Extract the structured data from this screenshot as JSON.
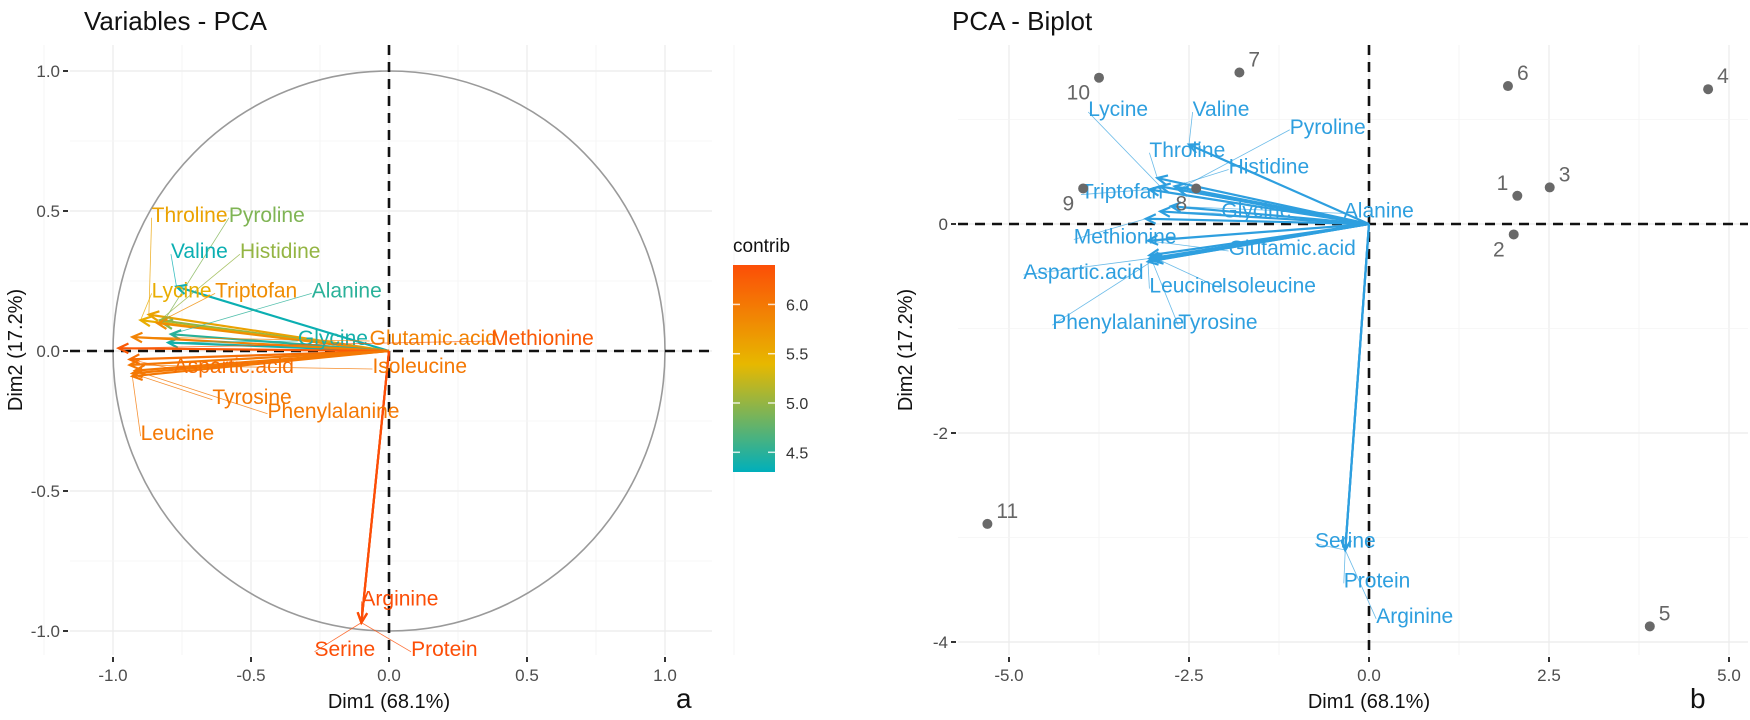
{
  "chart_data": [
    {
      "type": "scatter",
      "subtype": "pca-variable-correlation-circle",
      "title": "Variables - PCA",
      "panel_letter": "a",
      "xlabel": "Dim1 (68.1%)",
      "ylabel": "Dim2 (17.2%)",
      "xlim": [
        -1.1,
        1.1
      ],
      "ylim": [
        -1.1,
        1.05
      ],
      "xticks": [
        "-1.0",
        "-0.5",
        "0.0",
        "0.5",
        "1.0"
      ],
      "xtick_values": [
        -1.0,
        -0.5,
        0.0,
        0.5,
        1.0
      ],
      "yticks": [
        "1.0",
        "0.5",
        "0.0",
        "-0.5",
        "-1.0"
      ],
      "ytick_values": [
        1.0,
        0.5,
        0.0,
        -0.5,
        -1.0
      ],
      "grid": true,
      "color_legend": {
        "title": "contrib",
        "position": "right",
        "ticks": [
          "6.0",
          "5.5",
          "5.0",
          "4.5"
        ],
        "tick_values": [
          6.0,
          5.5,
          5.0,
          4.5
        ],
        "range": [
          4.3,
          6.4
        ],
        "colors": [
          "#00AFBB",
          "#E7B800",
          "#FC4E07"
        ]
      },
      "variables": [
        {
          "name": "Throline",
          "x": -0.87,
          "y": 0.13,
          "contrib": 5.6,
          "label_x": -0.86,
          "label_y": 0.49
        },
        {
          "name": "Pyroline",
          "x": -0.82,
          "y": 0.1,
          "contrib": 4.9,
          "label_x": -0.58,
          "label_y": 0.49
        },
        {
          "name": "Valine",
          "x": -0.77,
          "y": 0.23,
          "contrib": 4.35,
          "label_x": -0.79,
          "label_y": 0.36
        },
        {
          "name": "Histidine",
          "x": -0.83,
          "y": 0.11,
          "contrib": 5.0,
          "label_x": -0.54,
          "label_y": 0.36
        },
        {
          "name": "Lycine",
          "x": -0.9,
          "y": 0.11,
          "contrib": 5.5,
          "label_x": -0.86,
          "label_y": 0.22
        },
        {
          "name": "Triptofan",
          "x": -0.84,
          "y": 0.1,
          "contrib": 5.8,
          "label_x": -0.63,
          "label_y": 0.22
        },
        {
          "name": "Alanine",
          "x": -0.79,
          "y": 0.06,
          "contrib": 4.5,
          "label_x": -0.28,
          "label_y": 0.22
        },
        {
          "name": "Glycine",
          "x": -0.8,
          "y": 0.03,
          "contrib": 4.4,
          "label_x": -0.33,
          "label_y": 0.05
        },
        {
          "name": "Glutamic.acid",
          "x": -0.93,
          "y": 0.05,
          "contrib": 5.9,
          "label_x": -0.07,
          "label_y": 0.05
        },
        {
          "name": "Methionine",
          "x": -0.98,
          "y": 0.01,
          "contrib": 6.3,
          "label_x": 0.37,
          "label_y": 0.05
        },
        {
          "name": "Aspartic.acid",
          "x": -0.94,
          "y": -0.03,
          "contrib": 6.1,
          "label_x": -0.78,
          "label_y": -0.05
        },
        {
          "name": "Isoleucine",
          "x": -0.94,
          "y": -0.05,
          "contrib": 6.0,
          "label_x": -0.06,
          "label_y": -0.05
        },
        {
          "name": "Tyrosine",
          "x": -0.93,
          "y": -0.08,
          "contrib": 6.0,
          "label_x": -0.64,
          "label_y": -0.16
        },
        {
          "name": "Phenylalanine",
          "x": -0.92,
          "y": -0.07,
          "contrib": 6.0,
          "label_x": -0.44,
          "label_y": -0.21
        },
        {
          "name": "Leucine",
          "x": -0.93,
          "y": -0.09,
          "contrib": 6.0,
          "label_x": -0.9,
          "label_y": -0.29
        },
        {
          "name": "Arginine",
          "x": -0.1,
          "y": -0.97,
          "contrib": 6.4,
          "label_x": -0.1,
          "label_y": -0.88
        },
        {
          "name": "Serine",
          "x": -0.1,
          "y": -0.97,
          "contrib": 6.4,
          "label_x": -0.27,
          "label_y": -1.06
        },
        {
          "name": "Protein",
          "x": -0.1,
          "y": -0.97,
          "contrib": 6.4,
          "label_x": 0.08,
          "label_y": -1.06
        }
      ]
    },
    {
      "type": "scatter",
      "subtype": "pca-biplot",
      "title": "PCA - Biplot",
      "panel_letter": "b",
      "xlabel": "Dim1 (68.1%)",
      "ylabel": "Dim2 (17.2%)",
      "xlim": [
        -5.9,
        5.3
      ],
      "ylim": [
        -4.2,
        2.0
      ],
      "xticks": [
        "-5.0",
        "-2.5",
        "0.0",
        "2.5",
        "5.0"
      ],
      "xtick_values": [
        -5.0,
        -2.5,
        0.0,
        2.5,
        5.0
      ],
      "yticks": [
        "0",
        "-2",
        "-4"
      ],
      "ytick_values": [
        0,
        -2,
        -4
      ],
      "grid": true,
      "arrow_color": "#2E9FDF",
      "point_color": "#696969",
      "individuals": [
        {
          "label": "1",
          "x": 2.06,
          "y": 0.27,
          "label_dx": -1,
          "label_dy": -1
        },
        {
          "label": "2",
          "x": 2.01,
          "y": -0.1,
          "label_dx": -1,
          "label_dy": 1
        },
        {
          "label": "3",
          "x": 2.51,
          "y": 0.35,
          "label_dx": 1,
          "label_dy": -1
        },
        {
          "label": "4",
          "x": 4.71,
          "y": 1.29,
          "label_dx": 1,
          "label_dy": -1
        },
        {
          "label": "5",
          "x": 3.9,
          "y": -3.85,
          "label_dx": 1,
          "label_dy": -1
        },
        {
          "label": "6",
          "x": 1.93,
          "y": 1.32,
          "label_dx": 1,
          "label_dy": -1
        },
        {
          "label": "7",
          "x": -1.8,
          "y": 1.45,
          "label_dx": 1,
          "label_dy": -1
        },
        {
          "label": "8",
          "x": -2.4,
          "y": 0.34,
          "label_dx": -1,
          "label_dy": 1
        },
        {
          "label": "9",
          "x": -3.97,
          "y": 0.34,
          "label_dx": -1,
          "label_dy": 1
        },
        {
          "label": "10",
          "x": -3.75,
          "y": 1.4,
          "label_dx": -1,
          "label_dy": 1
        },
        {
          "label": "11",
          "x": -5.3,
          "y": -2.87,
          "label_dx": 1,
          "label_dy": -1
        }
      ],
      "variables": [
        {
          "name": "Lycine",
          "x": -2.9,
          "y": 0.36,
          "label_x": -3.9,
          "label_y": 1.11
        },
        {
          "name": "Valine",
          "x": -2.5,
          "y": 0.76,
          "label_x": -2.45,
          "label_y": 1.11
        },
        {
          "name": "Pyroline",
          "x": -2.65,
          "y": 0.33,
          "label_x": -1.1,
          "label_y": 0.94
        },
        {
          "name": "Throline",
          "x": -2.94,
          "y": 0.44,
          "label_x": -3.05,
          "label_y": 0.72
        },
        {
          "name": "Histidine",
          "x": -2.7,
          "y": 0.36,
          "label_x": -1.95,
          "label_y": 0.56
        },
        {
          "name": "Triptofan",
          "x": -3.05,
          "y": 0.33,
          "label_x": -4.0,
          "label_y": 0.32
        },
        {
          "name": "Glycine",
          "x": -2.9,
          "y": 0.12,
          "label_x": -2.05,
          "label_y": 0.14
        },
        {
          "name": "Alanine",
          "x": -2.75,
          "y": 0.17,
          "label_x": -0.35,
          "label_y": 0.14
        },
        {
          "name": "Methionine",
          "x": -3.1,
          "y": 0.05,
          "label_x": -4.1,
          "label_y": -0.11
        },
        {
          "name": "Glutamic.acid",
          "x": -3.07,
          "y": -0.16,
          "label_x": -1.95,
          "label_y": -0.22
        },
        {
          "name": "Aspartic.acid",
          "x": -3.05,
          "y": -0.33,
          "label_x": -4.8,
          "label_y": -0.45
        },
        {
          "name": "Leucine",
          "x": -3.07,
          "y": -0.36,
          "label_x": -3.05,
          "label_y": -0.58
        },
        {
          "name": "Isoleucine",
          "x": -3.05,
          "y": -0.3,
          "label_x": -2.05,
          "label_y": -0.58
        },
        {
          "name": "Phenylalanine",
          "x": -3.0,
          "y": -0.35,
          "label_x": -4.4,
          "label_y": -0.93
        },
        {
          "name": "Tyrosine",
          "x": -3.02,
          "y": -0.34,
          "label_x": -2.65,
          "label_y": -0.93
        },
        {
          "name": "Serine",
          "x": -0.33,
          "y": -3.12,
          "label_x": -0.75,
          "label_y": -3.02
        },
        {
          "name": "Protein",
          "x": -0.33,
          "y": -3.12,
          "label_x": -0.35,
          "label_y": -3.4
        },
        {
          "name": "Arginine",
          "x": -0.33,
          "y": -3.12,
          "label_x": 0.1,
          "label_y": -3.74
        }
      ]
    }
  ]
}
